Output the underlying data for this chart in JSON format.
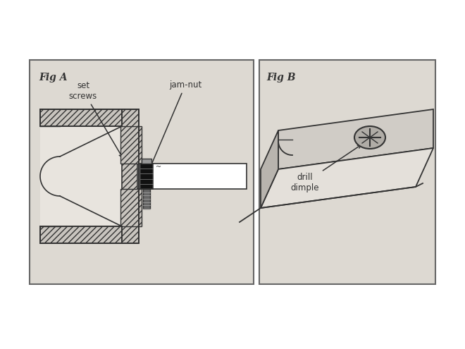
{
  "outer_bg": "#ffffff",
  "border_color": "#666666",
  "line_color": "#333333",
  "fig_a_label": "Fig A",
  "fig_b_label": "Fig B",
  "label_jamnut": "jam-nut",
  "label_setscrews": "set\nscrews",
  "label_drilldimple": "drill\ndimple",
  "panel_bg": "#ddd9d2",
  "hatch_fg": "#c8c4be",
  "shaft_color": "#ffffff",
  "nut_color": "#111111",
  "bolt_color": "#666666",
  "bar_front_color": "#d0ccc6",
  "bar_top_color": "#e4e0da",
  "bar_side_color": "#b8b4ae",
  "dimple_color": "#b0aca6"
}
